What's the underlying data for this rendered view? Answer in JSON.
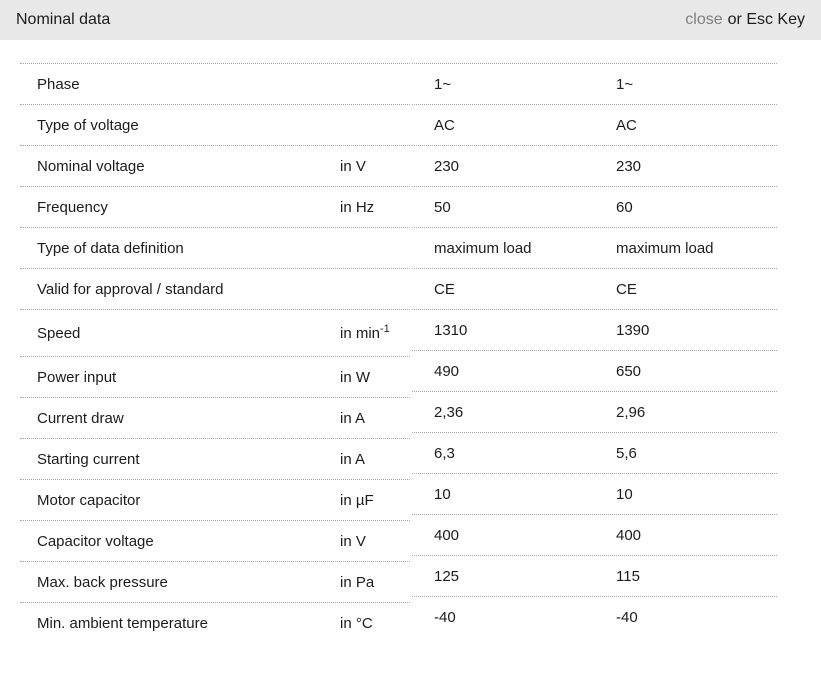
{
  "header": {
    "title": "Nominal data",
    "close_label": "close",
    "close_suffix": "or Esc Key"
  },
  "colors": {
    "header_bg": "#e8e8e8",
    "divider": "#a8a8a8",
    "close_link": "#7f7f7f",
    "text": "#1c1c1c"
  },
  "table": {
    "rows": [
      {
        "label": "Phase",
        "unit": "",
        "unit_sup": "",
        "v1": "1~",
        "v2": "1~"
      },
      {
        "label": "Type of voltage",
        "unit": "",
        "unit_sup": "",
        "v1": "AC",
        "v2": "AC"
      },
      {
        "label": "Nominal voltage",
        "unit": "in V",
        "unit_sup": "",
        "v1": "230",
        "v2": "230"
      },
      {
        "label": "Frequency",
        "unit": "in Hz",
        "unit_sup": "",
        "v1": "50",
        "v2": "60"
      },
      {
        "label": "Type of data definition",
        "unit": "",
        "unit_sup": "",
        "v1": "maximum load",
        "v2": "maximum load"
      },
      {
        "label": "Valid for approval / standard",
        "unit": "",
        "unit_sup": "",
        "v1": "CE",
        "v2": "CE"
      },
      {
        "label": "Speed",
        "unit": "in min",
        "unit_sup": "-1",
        "v1": "1310",
        "v2": "1390"
      },
      {
        "label": "Power input",
        "unit": "in W",
        "unit_sup": "",
        "v1": "490",
        "v2": "650"
      },
      {
        "label": "Current draw",
        "unit": "in A",
        "unit_sup": "",
        "v1": "2,36",
        "v2": "2,96"
      },
      {
        "label": "Starting current",
        "unit": "in A",
        "unit_sup": "",
        "v1": "6,3",
        "v2": "5,6"
      },
      {
        "label": "Motor capacitor",
        "unit": "in µF",
        "unit_sup": "",
        "v1": "10",
        "v2": "10"
      },
      {
        "label": "Capacitor voltage",
        "unit": "in V",
        "unit_sup": "",
        "v1": "400",
        "v2": "400"
      },
      {
        "label": "Max. back pressure",
        "unit": "in Pa",
        "unit_sup": "",
        "v1": "125",
        "v2": "115"
      },
      {
        "label": "Min. ambient temperature",
        "unit": "in °C",
        "unit_sup": "",
        "v1": "-40",
        "v2": "-40"
      }
    ]
  }
}
